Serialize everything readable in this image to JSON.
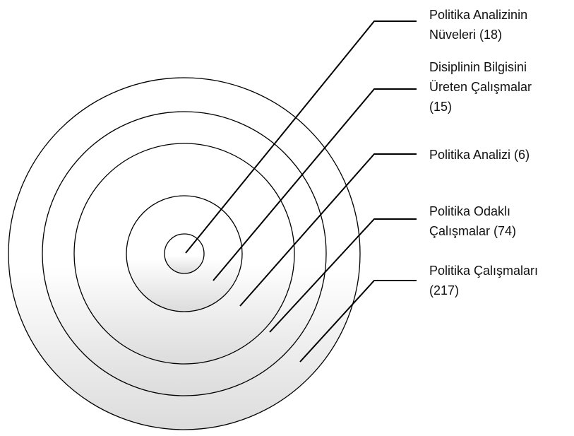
{
  "labels": [
    {
      "lines": [
        "Politika Analizinin",
        "Nüveleri (18)"
      ]
    },
    {
      "lines": [
        "Disiplinin Bilgisini",
        "Üreten Çalışmalar",
        "(15)"
      ]
    },
    {
      "lines": [
        "Politika Analizi (6)"
      ]
    },
    {
      "lines": [
        "Politika Odaklı",
        "Çalışmalar (74)"
      ]
    },
    {
      "lines": [
        "Politika Çalışmaları",
        "(217)"
      ]
    }
  ]
}
